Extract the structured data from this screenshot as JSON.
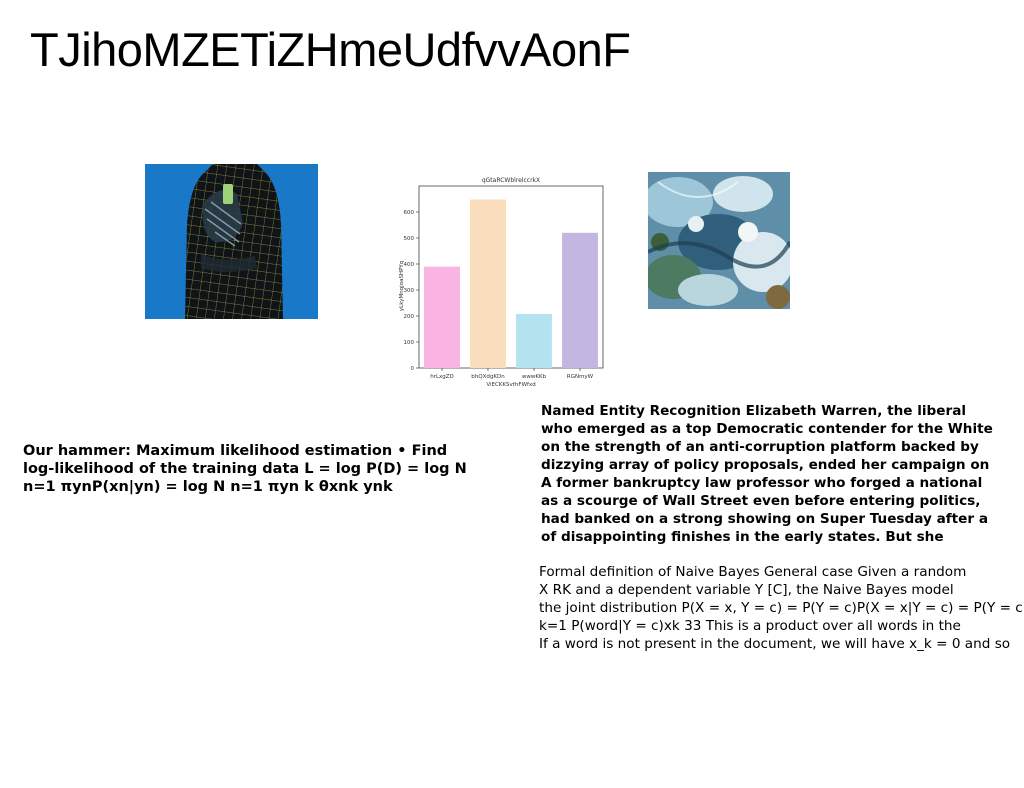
{
  "slide": {
    "title": "TJihoMZETiZHmeUdfvvAonF"
  },
  "images": {
    "person": "photo-person-holding-phone",
    "abstract": "abstract-blue-painting"
  },
  "chart_data": {
    "type": "bar",
    "title": "qGtaRCWblrelccrkX",
    "xlabel": "ViECKKSvthFWfxd",
    "ylabel": "yLkyMnqjoaSHPYq",
    "categories": [
      "hrLxgZD",
      "bhQXdgKDn",
      "wwwKKb",
      "RGNmyW"
    ],
    "values": [
      390,
      648,
      208,
      520
    ],
    "colors": [
      "#f9b4e3",
      "#f9dcbc",
      "#b5e2ef",
      "#c3b6e0"
    ],
    "ylim": [
      0,
      700
    ],
    "yticks": [
      "0",
      "100",
      "200",
      "300",
      "400",
      "500",
      "600"
    ],
    "grid": false
  },
  "blocks": {
    "hammer": [
      "Our hammer: Maximum likelihood estimation • Find",
      "log-likelihood of the training data L = log P(D) = log N",
      "n=1 πynP(xn|yn) = log N  n=1  πyn  k θxnk ynk"
    ],
    "ner": [
      "Named Entity Recognition Elizabeth Warren, the liberal",
      "who emerged as a top Democratic contender for the White",
      "on the strength of an anti-corruption platform backed by",
      "dizzying array of policy proposals, ended her campaign on",
      "A former bankruptcy law professor who forged a national",
      "as a scourge of Wall Street even before entering politics,",
      "had banked on a strong showing on Super Tuesday after a",
      "of disappointing finishes in the early states. But she"
    ],
    "naive_bayes": [
      "Formal definition of Naive Bayes General case Given a random",
      "X  RK and a dependent variable Y  [C], the Naive Bayes model",
      "the joint distribution P(X = x, Y = c) = P(Y = c)P(X = x|Y = c) = P(Y = c)",
      " k=1 P(word|Y = c)xk 33 This is a product over all words in the",
      "If a word is not present in the document, we will have x_k = 0 and so"
    ]
  }
}
